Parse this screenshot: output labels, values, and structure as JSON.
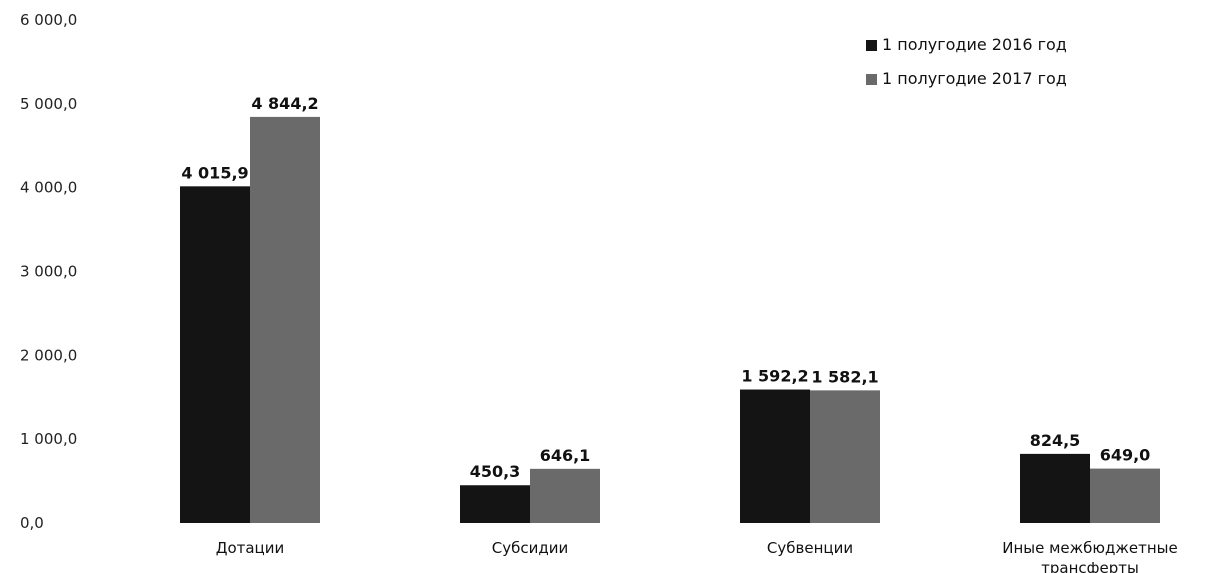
{
  "chart_data": {
    "type": "bar",
    "title": "",
    "xlabel": "",
    "ylabel": "",
    "categories": [
      "Дотации",
      "Субсидии",
      "Субвенции",
      "Иные межбюджетные трансферты"
    ],
    "category_lines": [
      [
        "Дотации"
      ],
      [
        "Субсидии"
      ],
      [
        "Субвенции"
      ],
      [
        "Иные межбюджетные",
        "трансферты"
      ]
    ],
    "series": [
      {
        "name": "1 полугодие 2016 год",
        "values": [
          4015.9,
          450.3,
          1592.2,
          824.5
        ],
        "labels": [
          "4 015,9",
          "450,3",
          "1 592,2",
          "824,5"
        ],
        "color": "#141414"
      },
      {
        "name": "1 полугодие 2017 год",
        "values": [
          4844.2,
          646.1,
          1582.1,
          649.0
        ],
        "labels": [
          "4 844,2",
          "646,1",
          "1 582,1",
          "649,0"
        ],
        "color": "#6a6a6a"
      }
    ],
    "ylim": [
      0,
      6000
    ],
    "y_ticks": [
      0,
      1000,
      2000,
      3000,
      4000,
      5000,
      6000
    ],
    "y_tick_labels": [
      "0,0",
      "1 000,0",
      "2 000,0",
      "3 000,0",
      "4 000,0",
      "5 000,0",
      "6 000,0"
    ],
    "grid": false,
    "legend_position": "top-right"
  }
}
